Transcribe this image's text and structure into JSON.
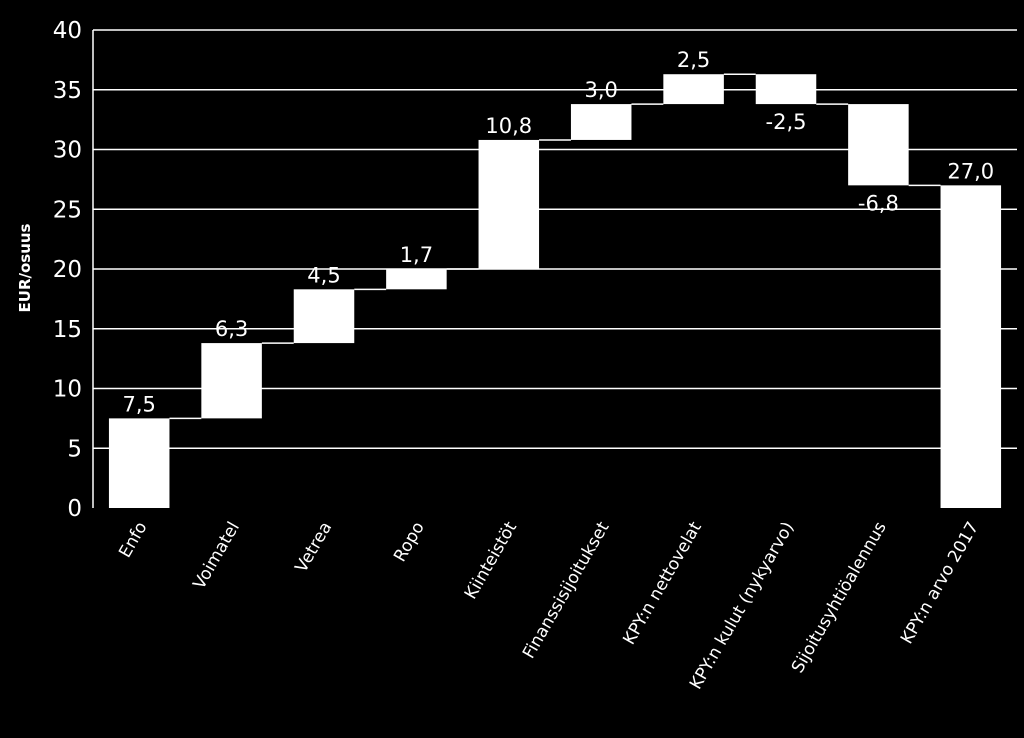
{
  "chart_data": {
    "type": "bar",
    "subtype": "waterfall",
    "title": "",
    "xlabel": "",
    "ylabel": "EUR/osuus",
    "ylim": [
      0,
      40
    ],
    "yticks": [
      "0",
      "5",
      "10",
      "15",
      "20",
      "25",
      "30",
      "35",
      "40"
    ],
    "grid": true,
    "categories": [
      "Enfo",
      "Voimatel",
      "Vetrea",
      "Ropo",
      "Kiinteistöt",
      "Finanssisijoitukset",
      "KPY:n nettovelat",
      "KPY:n kulut (nykyarvo)",
      "Sijoitusyhtiöalennus",
      "KPY:n arvo 2017"
    ],
    "values": [
      7.5,
      6.3,
      4.5,
      1.7,
      10.8,
      3.0,
      2.5,
      -2.5,
      -6.8,
      27.0
    ],
    "value_labels": [
      "7,5",
      "6,3",
      "4,5",
      "1,7",
      "10,8",
      "3,0",
      "2,5",
      "-2,5",
      "-6,8",
      "27,0"
    ],
    "total_index": 9,
    "colors": {
      "background": "#000000",
      "bar": "#ffffff",
      "grid": "#ffffff",
      "text": "#ffffff"
    }
  }
}
